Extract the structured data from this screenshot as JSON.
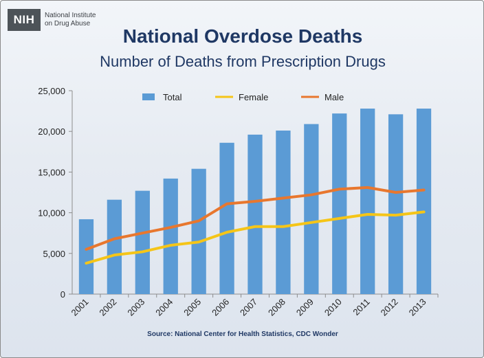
{
  "logo": {
    "abbr": "NIH",
    "line1": "National Institute",
    "line2": "on Drug Abuse"
  },
  "source": "Source: National Center for Health Statistics, CDC Wonder",
  "colors": {
    "title": "#1f3864",
    "total": "#5b9bd5",
    "female": "#f5c518",
    "male": "#e8772e"
  },
  "chart_data": {
    "type": "bar",
    "title": "National Overdose Deaths",
    "subtitle": "Number of Deaths from Prescription Drugs",
    "xlabel": "",
    "ylabel": "",
    "categories": [
      "2001",
      "2002",
      "2003",
      "2004",
      "2005",
      "2006",
      "2007",
      "2008",
      "2009",
      "2010",
      "2011",
      "2012",
      "2013"
    ],
    "series": [
      {
        "name": "Total",
        "type": "bar",
        "values": [
          9200,
          11600,
          12700,
          14200,
          15400,
          18600,
          19600,
          20100,
          20900,
          22200,
          22800,
          22100,
          22800
        ]
      },
      {
        "name": "Female",
        "type": "line",
        "values": [
          3800,
          4800,
          5200,
          6000,
          6400,
          7600,
          8300,
          8300,
          8800,
          9300,
          9800,
          9700,
          10100
        ]
      },
      {
        "name": "Male",
        "type": "line",
        "values": [
          5500,
          6800,
          7500,
          8200,
          9000,
          11100,
          11400,
          11800,
          12200,
          12900,
          13100,
          12500,
          12800
        ]
      }
    ],
    "ylim": [
      0,
      25000
    ],
    "yticks": [
      "0",
      "5,000",
      "10,000",
      "15,000",
      "20,000",
      "25,000"
    ],
    "legend": "top",
    "grid": false
  }
}
